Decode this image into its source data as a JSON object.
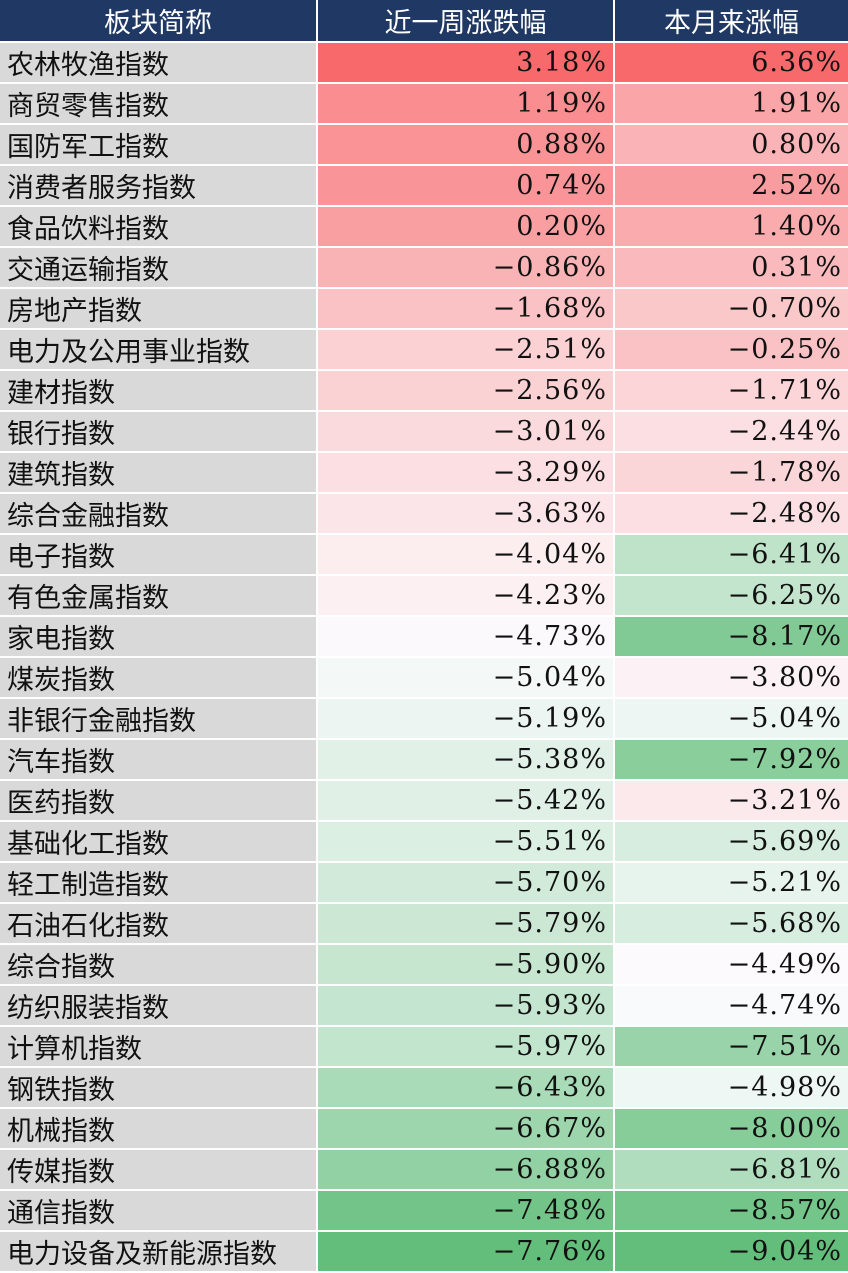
{
  "chart_data": {
    "type": "table",
    "columns": [
      "板块简称",
      "近一周涨跌幅",
      "本月来涨幅"
    ],
    "rows": [
      {
        "name": "农林牧渔指数",
        "week": "3.18%",
        "month": "6.36%"
      },
      {
        "name": "商贸零售指数",
        "week": "1.19%",
        "month": "1.91%"
      },
      {
        "name": "国防军工指数",
        "week": "0.88%",
        "month": "0.80%"
      },
      {
        "name": "消费者服务指数",
        "week": "0.74%",
        "month": "2.52%"
      },
      {
        "name": "食品饮料指数",
        "week": "0.20%",
        "month": "1.40%"
      },
      {
        "name": "交通运输指数",
        "week": "−0.86%",
        "month": "0.31%"
      },
      {
        "name": "房地产指数",
        "week": "−1.68%",
        "month": "−0.70%"
      },
      {
        "name": "电力及公用事业指数",
        "week": "−2.51%",
        "month": "−0.25%"
      },
      {
        "name": "建材指数",
        "week": "−2.56%",
        "month": "−1.71%"
      },
      {
        "name": "银行指数",
        "week": "−3.01%",
        "month": "−2.44%"
      },
      {
        "name": "建筑指数",
        "week": "−3.29%",
        "month": "−1.78%"
      },
      {
        "name": "综合金融指数",
        "week": "−3.63%",
        "month": "−2.48%"
      },
      {
        "name": "电子指数",
        "week": "−4.04%",
        "month": "−6.41%"
      },
      {
        "name": "有色金属指数",
        "week": "−4.23%",
        "month": "−6.25%"
      },
      {
        "name": "家电指数",
        "week": "−4.73%",
        "month": "−8.17%"
      },
      {
        "name": "煤炭指数",
        "week": "−5.04%",
        "month": "−3.80%"
      },
      {
        "name": "非银行金融指数",
        "week": "−5.19%",
        "month": "−5.04%"
      },
      {
        "name": "汽车指数",
        "week": "−5.38%",
        "month": "−7.92%"
      },
      {
        "name": "医药指数",
        "week": "−5.42%",
        "month": "−3.21%"
      },
      {
        "name": "基础化工指数",
        "week": "−5.51%",
        "month": "−5.69%"
      },
      {
        "name": "轻工制造指数",
        "week": "−5.70%",
        "month": "−5.21%"
      },
      {
        "name": "石油石化指数",
        "week": "−5.79%",
        "month": "−5.68%"
      },
      {
        "name": "综合指数",
        "week": "−5.90%",
        "month": "−4.49%"
      },
      {
        "name": "纺织服装指数",
        "week": "−5.93%",
        "month": "−4.74%"
      },
      {
        "name": "计算机指数",
        "week": "−5.97%",
        "month": "−7.51%"
      },
      {
        "name": "钢铁指数",
        "week": "−6.43%",
        "month": "−4.98%"
      },
      {
        "name": "机械指数",
        "week": "−6.67%",
        "month": "−8.00%"
      },
      {
        "name": "传媒指数",
        "week": "−6.88%",
        "month": "−6.81%"
      },
      {
        "name": "通信指数",
        "week": "−7.48%",
        "month": "−8.57%"
      },
      {
        "name": "电力设备及新能源指数",
        "week": "−7.76%",
        "month": "−9.04%"
      }
    ],
    "colors": {
      "header_bg": "#1f3864",
      "header_text": "#ffffff",
      "name_bg": "#d9d9d9",
      "positive_max": "#f8696b",
      "neutral": "#fcfcff",
      "negative_max": "#63be7b"
    }
  }
}
